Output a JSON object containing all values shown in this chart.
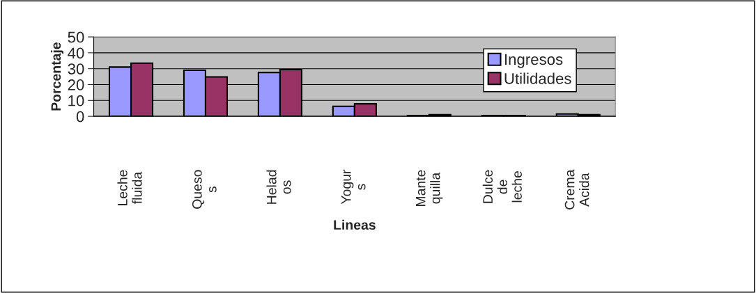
{
  "chart_data": {
    "type": "bar",
    "xlabel": "Lineas",
    "ylabel": "Porcentaje",
    "categories": [
      "Leche\nfluida",
      "Queso\ns",
      "Helad\nos",
      "Yogur\ns",
      "Mante\nquilla",
      "Dulce\nde\nleche",
      "Crema\nAcida"
    ],
    "series": [
      {
        "name": "Ingresos",
        "color": "#9999ff",
        "values": [
          31,
          29,
          27.6,
          6.3,
          0.5,
          0.5,
          1.5
        ]
      },
      {
        "name": "Utilidades",
        "color": "#993366",
        "values": [
          33.5,
          24.8,
          29.4,
          7.9,
          1,
          0.5,
          1
        ]
      }
    ],
    "ylim": [
      0,
      50
    ],
    "yticks": [
      0,
      10,
      20,
      30,
      40,
      50
    ],
    "grid": "y",
    "legend": "right"
  }
}
